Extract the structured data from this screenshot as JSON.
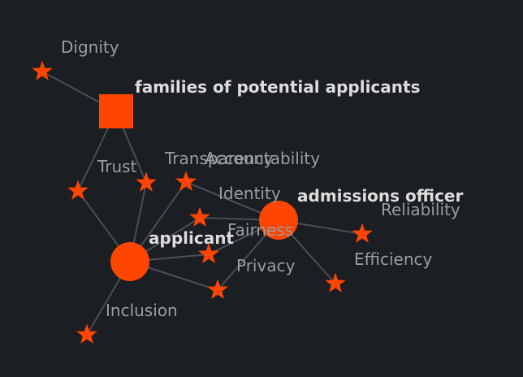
{
  "diagram": {
    "node_color": "#ff4500",
    "edge_color": "#4a4d52",
    "background": "#1b1e23",
    "stakeholders": [
      {
        "id": "families",
        "label": "families of potential applicants",
        "shape": "square"
      },
      {
        "id": "applicant",
        "label": "applicant",
        "shape": "circle"
      },
      {
        "id": "officer",
        "label": "admissions officer",
        "shape": "circle"
      }
    ],
    "values": [
      {
        "id": "dignity",
        "label": "Dignity"
      },
      {
        "id": "trust",
        "label": "Trust"
      },
      {
        "id": "transparency",
        "label": "Transparency"
      },
      {
        "id": "accountability",
        "label": "Accountability"
      },
      {
        "id": "identity",
        "label": "Identity"
      },
      {
        "id": "fairness",
        "label": "Fairness"
      },
      {
        "id": "privacy",
        "label": "Privacy"
      },
      {
        "id": "reliability",
        "label": "Reliability"
      },
      {
        "id": "efficiency",
        "label": "Efficiency"
      },
      {
        "id": "inclusion",
        "label": "Inclusion"
      },
      {
        "id": "v_left",
        "label": ""
      },
      {
        "id": "v_center",
        "label": ""
      }
    ],
    "edges": [
      [
        "families",
        "dignity"
      ],
      [
        "families",
        "trust"
      ],
      [
        "families",
        "v_left"
      ],
      [
        "applicant",
        "v_left"
      ],
      [
        "applicant",
        "trust"
      ],
      [
        "applicant",
        "transparency"
      ],
      [
        "applicant",
        "identity"
      ],
      [
        "applicant",
        "v_center"
      ],
      [
        "applicant",
        "privacy"
      ],
      [
        "applicant",
        "inclusion"
      ],
      [
        "officer",
        "transparency"
      ],
      [
        "officer",
        "accountability"
      ],
      [
        "officer",
        "identity"
      ],
      [
        "officer",
        "v_center"
      ],
      [
        "officer",
        "reliability"
      ],
      [
        "officer",
        "efficiency"
      ],
      [
        "officer",
        "fairness"
      ],
      [
        "officer",
        "privacy"
      ]
    ]
  }
}
